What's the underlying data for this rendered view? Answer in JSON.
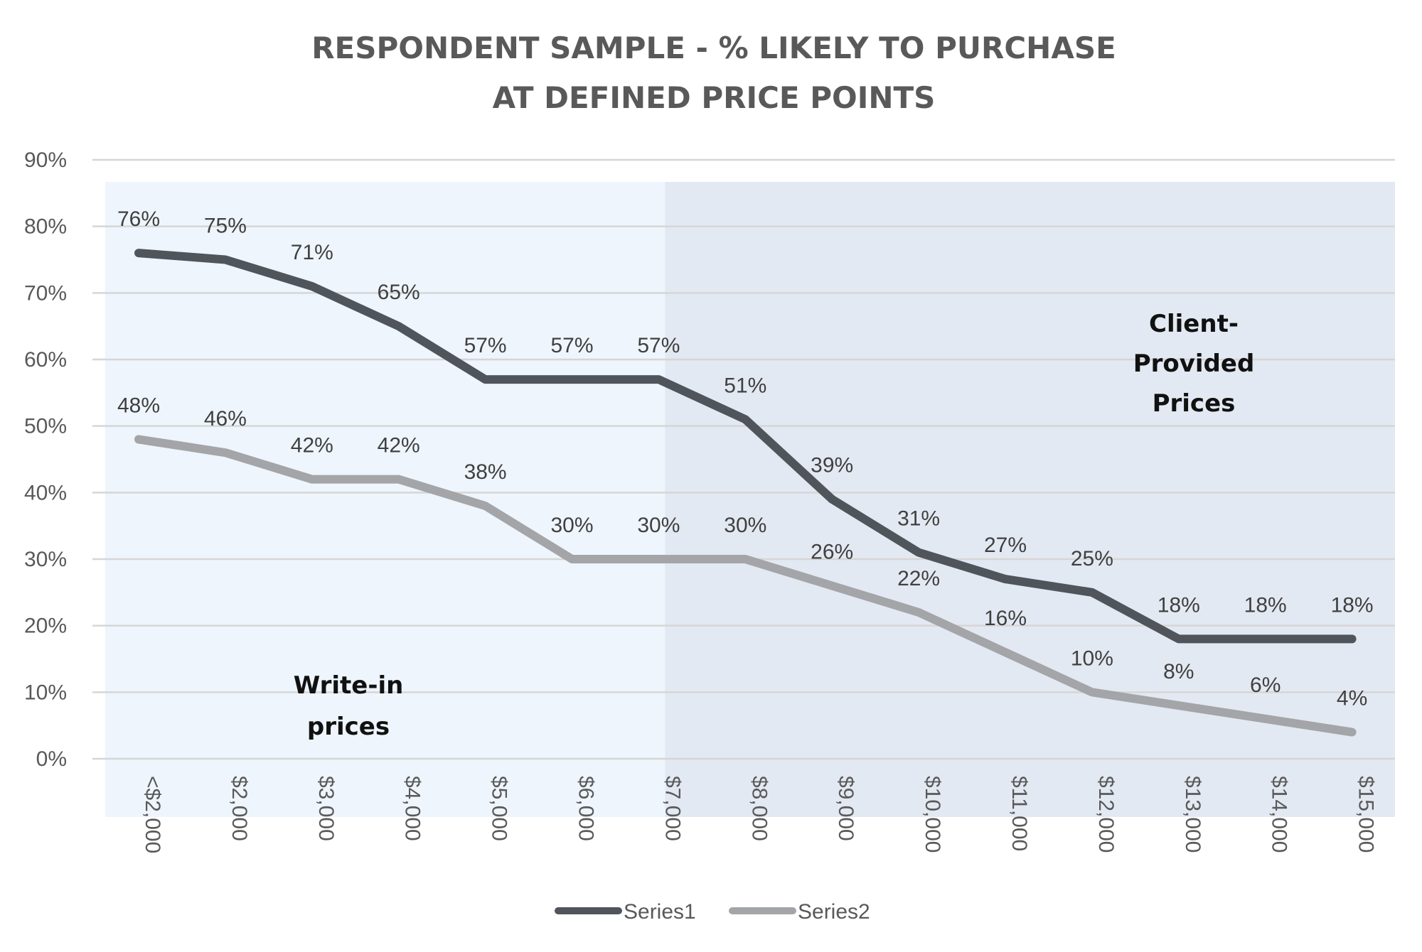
{
  "chart_data": {
    "type": "line",
    "title": [
      "RESPONDENT SAMPLE - % LIKELY TO PURCHASE",
      "AT DEFINED PRICE POINTS"
    ],
    "xlabel": "",
    "ylabel": "",
    "categories": [
      "<$2,000",
      "$2,000",
      "$3,000",
      "$4,000",
      "$5,000",
      "$6,000",
      "$7,000",
      "$8,000",
      "$9,000",
      "$10,000",
      "$11,000",
      "$12,000",
      "$13,000",
      "$14,000",
      "$15,000"
    ],
    "series": [
      {
        "name": "Series1",
        "color": "#50555c",
        "values": [
          76,
          75,
          71,
          65,
          57,
          57,
          57,
          51,
          39,
          31,
          27,
          25,
          18,
          18,
          18
        ]
      },
      {
        "name": "Series2",
        "color": "#a3a5a8",
        "values": [
          48,
          46,
          42,
          42,
          38,
          30,
          30,
          30,
          26,
          22,
          16,
          10,
          8,
          6,
          4
        ]
      }
    ],
    "data_label_format": "%",
    "ylim": [
      0,
      90
    ],
    "yticks": [
      "0%",
      "10%",
      "20%",
      "30%",
      "40%",
      "50%",
      "60%",
      "70%",
      "80%",
      "90%"
    ],
    "grid": true,
    "legend": "bottom",
    "regions": [
      {
        "label": [
          "Write-in",
          "prices"
        ],
        "from": "<$2,000",
        "to": "$7,000",
        "color": "#eef5fc"
      },
      {
        "label": [
          "Client-",
          "Provided",
          "Prices"
        ],
        "from": "$7,000",
        "to": "$15,000",
        "color": "#e3e9f2"
      }
    ]
  }
}
